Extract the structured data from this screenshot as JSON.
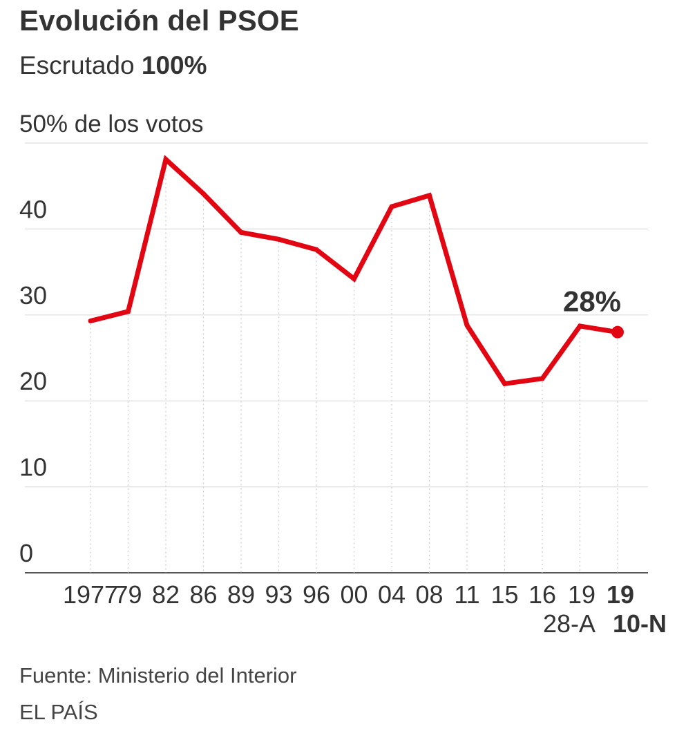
{
  "header": {
    "title": "Evolución del PSOE",
    "subtitle_prefix": "Escrutado",
    "subtitle_value": "100%"
  },
  "chart_data": {
    "type": "line",
    "title": "Evolución del PSOE",
    "ylabel": "50% de los votos",
    "xlabel": "",
    "ylim": [
      0,
      50
    ],
    "yticks": [
      {
        "value": 0,
        "label": "0"
      },
      {
        "value": 10,
        "label": "10"
      },
      {
        "value": 20,
        "label": "20"
      },
      {
        "value": 30,
        "label": "30"
      },
      {
        "value": 40,
        "label": "40"
      },
      {
        "value": 50,
        "label": "50% de los votos"
      }
    ],
    "categories": [
      "1977",
      "79",
      "82",
      "86",
      "89",
      "93",
      "96",
      "00",
      "04",
      "08",
      "11",
      "15",
      "16",
      "19",
      "19"
    ],
    "category_sublabels": {
      "13": "28-A",
      "14": "10-N"
    },
    "highlight_index": 14,
    "series": [
      {
        "name": "PSOE",
        "color": "#e20613",
        "values": [
          29.3,
          30.4,
          48.1,
          44.1,
          39.6,
          38.8,
          37.6,
          34.2,
          42.6,
          43.9,
          28.8,
          22.0,
          22.6,
          28.7,
          28.0
        ]
      }
    ],
    "annotation": {
      "index": 14,
      "label": "28%"
    }
  },
  "footer": {
    "source": "Fuente: Ministerio del Interior",
    "credit": "EL PAÍS"
  },
  "colors": {
    "line": "#e20613",
    "text": "#333333",
    "grid": "#dddddd",
    "axis": "#555555",
    "guide": "#cccccc"
  }
}
